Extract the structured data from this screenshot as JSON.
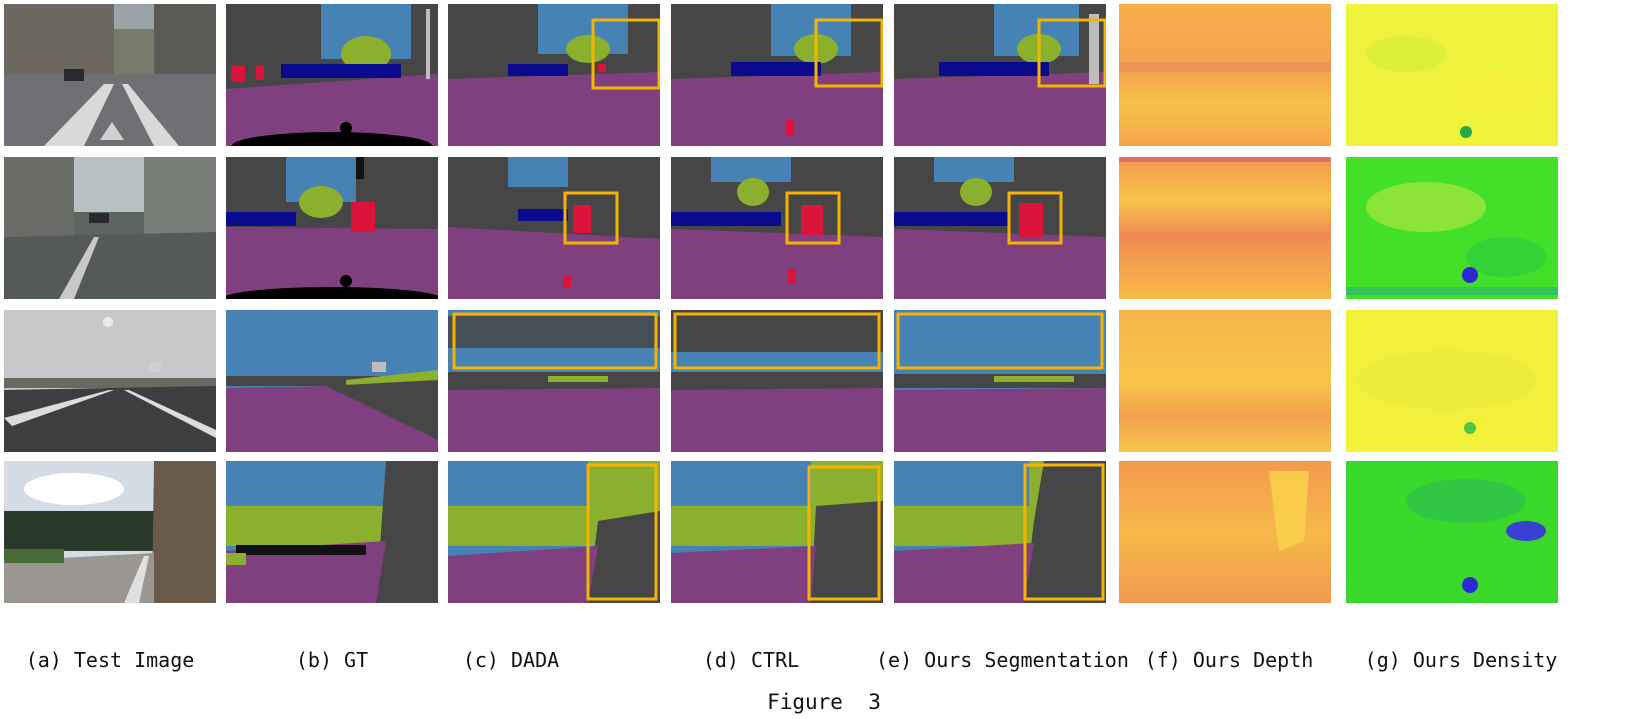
{
  "figure": {
    "caption": "Figure  3",
    "columns": [
      {
        "label": "(a) Test Image"
      },
      {
        "label": "(b) GT"
      },
      {
        "label": "(c) DADA"
      },
      {
        "label": "(d) CTRL"
      },
      {
        "label": "(e) Ours Segmentation"
      },
      {
        "label": "(f) Ours Depth"
      },
      {
        "label": "(g) Ours Density"
      }
    ],
    "rows": 4,
    "colors": {
      "sky": "#4682b4",
      "building": "#464646",
      "road": "#80407f",
      "vegetation": "#8bb02e",
      "car": "#0a0a8e",
      "person": "#dc143c",
      "pole": "#bdbdbd",
      "highlight_box": "#f5b400",
      "depth_base": "#f6a64a",
      "density_base": "#e8f43a"
    }
  }
}
